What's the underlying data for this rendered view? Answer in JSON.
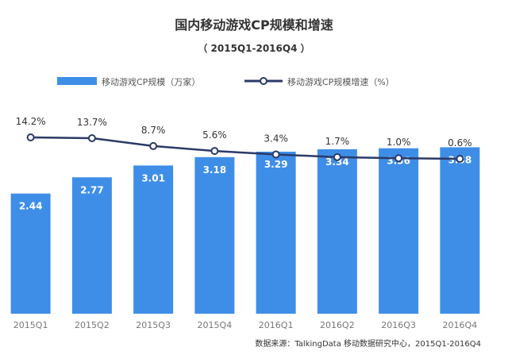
{
  "chart_data": {
    "type": "bar",
    "title": "国内移动游戏CP规模和增速",
    "subtitle": "（ 2015Q1-2016Q4 ）",
    "categories": [
      "2015Q1",
      "2015Q2",
      "2015Q3",
      "2015Q4",
      "2016Q1",
      "2016Q2",
      "2016Q3",
      "2016Q4"
    ],
    "series": [
      {
        "name": "移动游戏CP规模（万家）",
        "type": "bar",
        "values": [
          2.44,
          2.77,
          3.01,
          3.18,
          3.29,
          3.34,
          3.36,
          3.38
        ],
        "labels": [
          "2.44",
          "2.77",
          "3.01",
          "3.18",
          "3.29",
          "3.34",
          "3.36",
          "3.38"
        ]
      },
      {
        "name": "移动游戏CP规模增速（%）",
        "type": "line",
        "values": [
          14.2,
          13.7,
          8.7,
          5.6,
          3.4,
          1.7,
          1.0,
          0.6
        ],
        "labels": [
          "14.2%",
          "13.7%",
          "8.7%",
          "5.6%",
          "3.4%",
          "1.7%",
          "1.0%",
          "0.6%"
        ]
      }
    ],
    "legend_position": "top-left",
    "grid": false,
    "source": "数据来源：TalkingData 移动数据研究中心，2015Q1-2016Q4",
    "colors": {
      "bar": "#3e8ee8",
      "line": "#2b3a67",
      "bar_label": "#ffffff",
      "text": "#333333",
      "axis_text": "#777777"
    }
  }
}
